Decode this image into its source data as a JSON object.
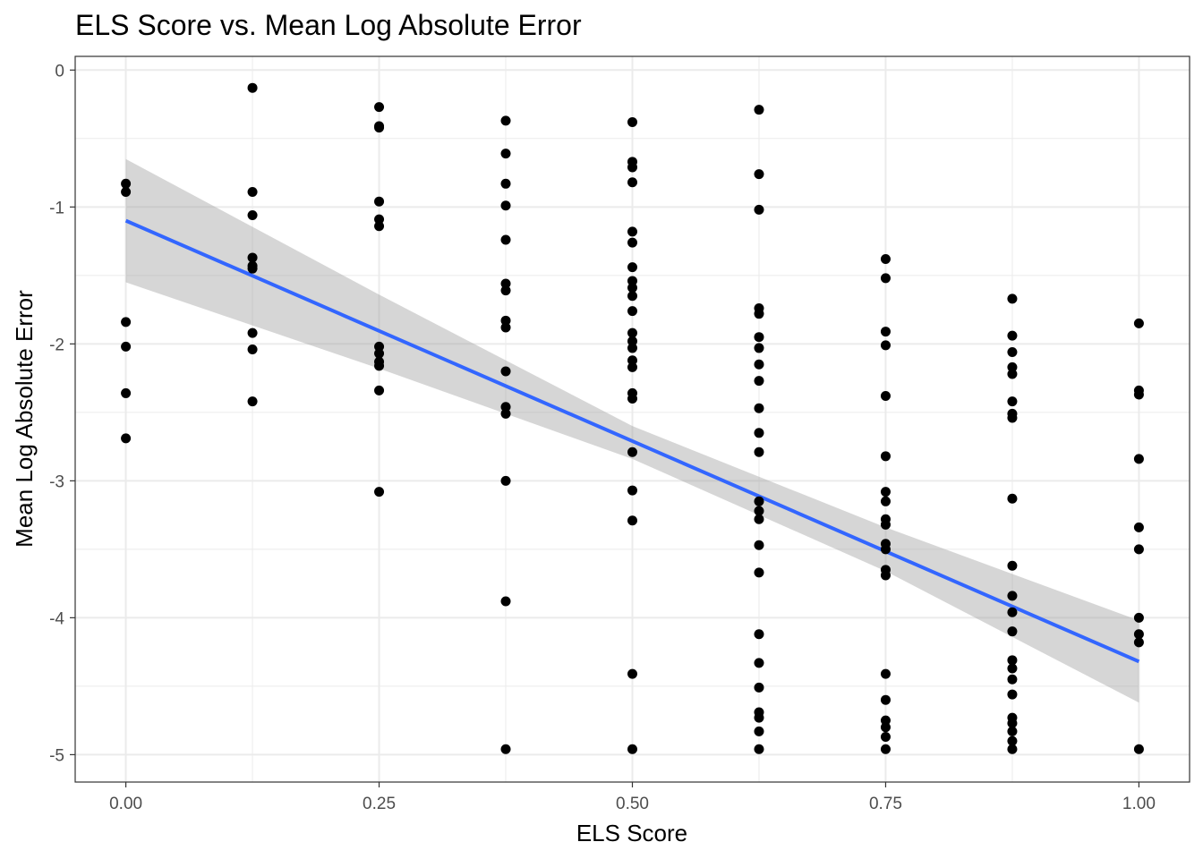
{
  "chart_data": {
    "type": "scatter",
    "title": "ELS Score vs. Mean Log Absolute Error",
    "xlabel": "ELS Score",
    "ylabel": "Mean Log Absolute Error",
    "xlim": [
      -0.05,
      1.05
    ],
    "ylim": [
      -5.2,
      0.1
    ],
    "x_ticks": [
      0.0,
      0.25,
      0.5,
      0.75,
      1.0
    ],
    "x_tick_labels": [
      "0.00",
      "0.25",
      "0.50",
      "0.75",
      "1.00"
    ],
    "y_ticks": [
      0,
      -1,
      -2,
      -3,
      -4,
      -5
    ],
    "y_tick_labels": [
      "0",
      "-1",
      "-2",
      "-3",
      "-4",
      "-5"
    ],
    "grid": true,
    "legend": "none",
    "colors": {
      "points": "#000000",
      "fit_line": "#3366ff",
      "confidence_band": "#999999",
      "grid": "#ebebeb",
      "panel_border": "#333333"
    },
    "series": [
      {
        "type": "scatter",
        "points": [
          [
            0,
            -0.83
          ],
          [
            0,
            -0.89
          ],
          [
            0,
            -1.84
          ],
          [
            0,
            -2.02
          ],
          [
            0,
            -2.36
          ],
          [
            0,
            -2.69
          ],
          [
            0.125,
            -0.13
          ],
          [
            0.125,
            -0.89
          ],
          [
            0.125,
            -1.06
          ],
          [
            0.125,
            -1.37
          ],
          [
            0.125,
            -1.43
          ],
          [
            0.125,
            -1.45
          ],
          [
            0.125,
            -1.92
          ],
          [
            0.125,
            -2.04
          ],
          [
            0.125,
            -2.42
          ],
          [
            0.25,
            -0.27
          ],
          [
            0.25,
            -0.41
          ],
          [
            0.25,
            -0.42
          ],
          [
            0.25,
            -0.96
          ],
          [
            0.25,
            -1.09
          ],
          [
            0.25,
            -1.14
          ],
          [
            0.25,
            -2.02
          ],
          [
            0.25,
            -2.07
          ],
          [
            0.25,
            -2.13
          ],
          [
            0.25,
            -2.16
          ],
          [
            0.25,
            -2.34
          ],
          [
            0.25,
            -3.08
          ],
          [
            0.375,
            -0.37
          ],
          [
            0.375,
            -0.61
          ],
          [
            0.375,
            -0.83
          ],
          [
            0.375,
            -0.99
          ],
          [
            0.375,
            -1.24
          ],
          [
            0.375,
            -1.56
          ],
          [
            0.375,
            -1.61
          ],
          [
            0.375,
            -1.83
          ],
          [
            0.375,
            -1.88
          ],
          [
            0.375,
            -2.2
          ],
          [
            0.375,
            -2.46
          ],
          [
            0.375,
            -2.51
          ],
          [
            0.375,
            -3.0
          ],
          [
            0.375,
            -3.88
          ],
          [
            0.375,
            -4.96
          ],
          [
            0.5,
            -0.38
          ],
          [
            0.5,
            -0.67
          ],
          [
            0.5,
            -0.71
          ],
          [
            0.5,
            -0.82
          ],
          [
            0.5,
            -1.18
          ],
          [
            0.5,
            -1.26
          ],
          [
            0.5,
            -1.44
          ],
          [
            0.5,
            -1.54
          ],
          [
            0.5,
            -1.59
          ],
          [
            0.5,
            -1.65
          ],
          [
            0.5,
            -1.76
          ],
          [
            0.5,
            -1.92
          ],
          [
            0.5,
            -1.98
          ],
          [
            0.5,
            -2.03
          ],
          [
            0.5,
            -2.12
          ],
          [
            0.5,
            -2.17
          ],
          [
            0.5,
            -2.36
          ],
          [
            0.5,
            -2.4
          ],
          [
            0.5,
            -2.79
          ],
          [
            0.5,
            -3.07
          ],
          [
            0.5,
            -3.29
          ],
          [
            0.5,
            -4.41
          ],
          [
            0.5,
            -4.96
          ],
          [
            0.625,
            -0.29
          ],
          [
            0.625,
            -0.76
          ],
          [
            0.625,
            -1.02
          ],
          [
            0.625,
            -1.74
          ],
          [
            0.625,
            -1.78
          ],
          [
            0.625,
            -1.95
          ],
          [
            0.625,
            -2.03
          ],
          [
            0.625,
            -2.15
          ],
          [
            0.625,
            -2.27
          ],
          [
            0.625,
            -2.47
          ],
          [
            0.625,
            -2.65
          ],
          [
            0.625,
            -2.79
          ],
          [
            0.625,
            -3.15
          ],
          [
            0.625,
            -3.22
          ],
          [
            0.625,
            -3.28
          ],
          [
            0.625,
            -3.47
          ],
          [
            0.625,
            -3.67
          ],
          [
            0.625,
            -4.12
          ],
          [
            0.625,
            -4.33
          ],
          [
            0.625,
            -4.51
          ],
          [
            0.625,
            -4.69
          ],
          [
            0.625,
            -4.73
          ],
          [
            0.625,
            -4.83
          ],
          [
            0.625,
            -4.96
          ],
          [
            0.75,
            -1.38
          ],
          [
            0.75,
            -1.52
          ],
          [
            0.75,
            -1.91
          ],
          [
            0.75,
            -2.01
          ],
          [
            0.75,
            -2.38
          ],
          [
            0.75,
            -2.82
          ],
          [
            0.75,
            -3.08
          ],
          [
            0.75,
            -3.15
          ],
          [
            0.75,
            -3.28
          ],
          [
            0.75,
            -3.32
          ],
          [
            0.75,
            -3.46
          ],
          [
            0.75,
            -3.5
          ],
          [
            0.75,
            -3.65
          ],
          [
            0.75,
            -3.69
          ],
          [
            0.75,
            -4.41
          ],
          [
            0.75,
            -4.6
          ],
          [
            0.75,
            -4.75
          ],
          [
            0.75,
            -4.8
          ],
          [
            0.75,
            -4.87
          ],
          [
            0.75,
            -4.96
          ],
          [
            0.875,
            -1.67
          ],
          [
            0.875,
            -1.94
          ],
          [
            0.875,
            -2.06
          ],
          [
            0.875,
            -2.17
          ],
          [
            0.875,
            -2.22
          ],
          [
            0.875,
            -2.42
          ],
          [
            0.875,
            -2.51
          ],
          [
            0.875,
            -2.54
          ],
          [
            0.875,
            -3.13
          ],
          [
            0.875,
            -3.62
          ],
          [
            0.875,
            -3.84
          ],
          [
            0.875,
            -3.96
          ],
          [
            0.875,
            -4.1
          ],
          [
            0.875,
            -4.31
          ],
          [
            0.875,
            -4.37
          ],
          [
            0.875,
            -4.45
          ],
          [
            0.875,
            -4.56
          ],
          [
            0.875,
            -4.73
          ],
          [
            0.875,
            -4.77
          ],
          [
            0.875,
            -4.83
          ],
          [
            0.875,
            -4.9
          ],
          [
            0.875,
            -4.96
          ],
          [
            1.0,
            -1.85
          ],
          [
            1.0,
            -2.34
          ],
          [
            1.0,
            -2.37
          ],
          [
            1.0,
            -2.84
          ],
          [
            1.0,
            -3.34
          ],
          [
            1.0,
            -3.5
          ],
          [
            1.0,
            -4.0
          ],
          [
            1.0,
            -4.12
          ],
          [
            1.0,
            -4.18
          ],
          [
            1.0,
            -4.96
          ]
        ]
      },
      {
        "type": "line",
        "role": "linear-fit",
        "x": [
          0,
          1
        ],
        "y": [
          -1.1,
          -4.32
        ]
      },
      {
        "type": "area",
        "role": "confidence-band",
        "x": [
          0,
          0.25,
          0.5,
          0.75,
          1.0
        ],
        "upper": [
          -0.65,
          -1.64,
          -2.6,
          -3.34,
          -4.02
        ],
        "lower": [
          -1.55,
          -2.18,
          -2.84,
          -3.66,
          -4.62
        ]
      }
    ]
  }
}
